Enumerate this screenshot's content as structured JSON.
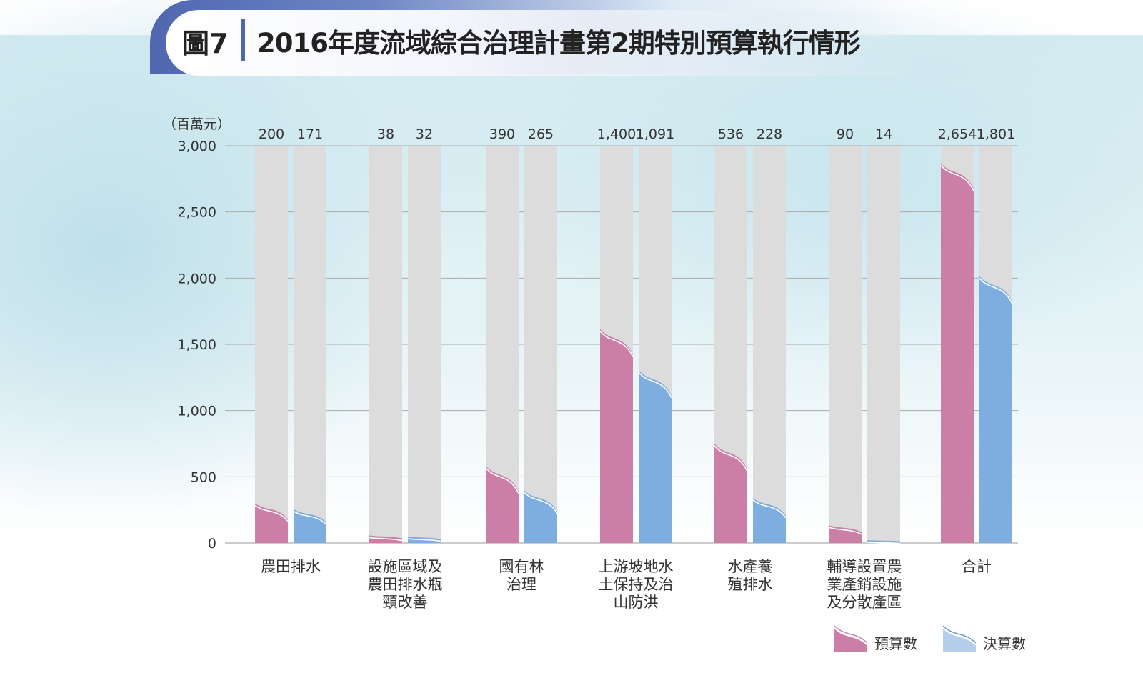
{
  "header": {
    "figure_label": "圖7",
    "title": "2016年度流域綜合治理計畫第2期特別預算執行情形"
  },
  "chart_data": {
    "type": "bar",
    "title": "2016年度流域綜合治理計畫第2期特別預算執行情形",
    "ylabel": "（百萬元）",
    "ylim": [
      0,
      3000
    ],
    "yticks": [
      "0",
      "500",
      "1,000",
      "1,500",
      "2,000",
      "2,500",
      "3,000"
    ],
    "ytick_values": [
      0,
      500,
      1000,
      1500,
      2000,
      2500,
      3000
    ],
    "grid": true,
    "legend_position": "bottom-right",
    "categories": [
      [
        "農田排水"
      ],
      [
        "設施區域及",
        "農田排水瓶",
        "頸改善"
      ],
      [
        "國有林",
        "治理"
      ],
      [
        "上游坡地水",
        "土保持及治",
        "山防洪"
      ],
      [
        "水產養",
        "殖排水"
      ],
      [
        "輔導設置農",
        "業產銷設施",
        "及分散產區"
      ],
      [
        "合計"
      ]
    ],
    "series": [
      {
        "name": "預算數",
        "color": "#cc7fa6",
        "values": [
          200,
          38,
          390,
          1400,
          536,
          90,
          2654
        ],
        "labels": [
          "200",
          "38",
          "390",
          "1,400",
          "536",
          "90",
          "2,654"
        ]
      },
      {
        "name": "決算數",
        "color": "#7eaddf",
        "values": [
          171,
          32,
          265,
          1091,
          228,
          14,
          1801
        ],
        "labels": [
          "171",
          "32",
          "265",
          "1,091",
          "228",
          "14",
          "1,801"
        ]
      }
    ],
    "background_bar_color": "#dcdcdc"
  }
}
